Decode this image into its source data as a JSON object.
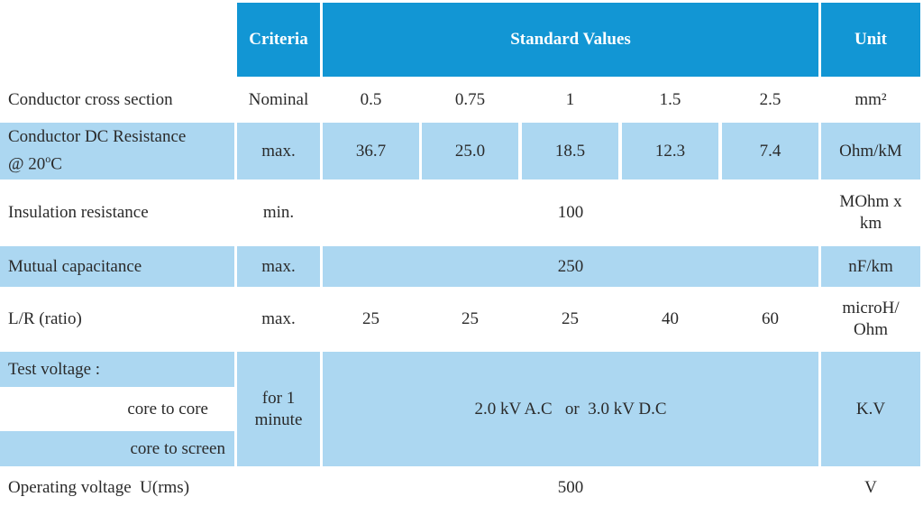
{
  "header": {
    "criteria": "Criteria",
    "standard_values": "Standard Values",
    "unit": "Unit"
  },
  "rows": {
    "cross_section": {
      "label": "Conductor cross section",
      "criteria": "Nominal",
      "values": [
        "0.5",
        "0.75",
        "1",
        "1.5",
        "2.5"
      ],
      "unit": "mm²"
    },
    "dc_resistance": {
      "label_line1": "Conductor DC Resistance",
      "label_line2_prefix": "@ 20",
      "label_line2_sup": "o",
      "label_line2_suffix": "C",
      "criteria": "max.",
      "values": [
        "36.7",
        "25.0",
        "18.5",
        "12.3",
        "7.4"
      ],
      "unit": "Ohm/kM"
    },
    "insulation": {
      "label": "Insulation resistance",
      "criteria": "min.",
      "value": "100",
      "unit_line1": "MOhm x",
      "unit_line2": "km"
    },
    "capacitance": {
      "label": "Mutual capacitance",
      "criteria": "max.",
      "value": "250",
      "unit": "nF/km"
    },
    "lr_ratio": {
      "label": "L/R (ratio)",
      "criteria": "max.",
      "values": [
        "25",
        "25",
        "25",
        "40",
        "60"
      ],
      "unit_line1": "microH/",
      "unit_line2": "Ohm"
    },
    "test_voltage": {
      "label": "Test voltage :",
      "sub1": "core to core",
      "sub2": "core to screen",
      "criteria_line1": "for 1",
      "criteria_line2": "minute",
      "value": "2.0 kV A.C   or  3.0 kV D.C",
      "unit": "K.V"
    },
    "operating": {
      "label": "Operating voltage  U(rms)",
      "value": "500",
      "unit": "V"
    }
  }
}
